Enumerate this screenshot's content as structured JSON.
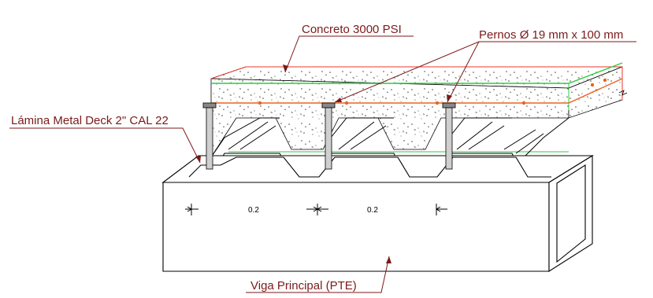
{
  "labels": {
    "concrete": "Concreto 3000 PSI",
    "studs": "Pernos Ø 19 mm x 100 mm",
    "deck": "Lámina Metal Deck 2\" CAL 22",
    "beam": "Viga Principal (PTE)"
  },
  "dimensions": [
    "0.2",
    "0.2"
  ],
  "colors": {
    "leader": "#7a1a1a",
    "rebar_green": "#2ecc40",
    "rebar_orange": "#e8651e",
    "concrete_edge": "#e8372a",
    "line": "#000000"
  }
}
